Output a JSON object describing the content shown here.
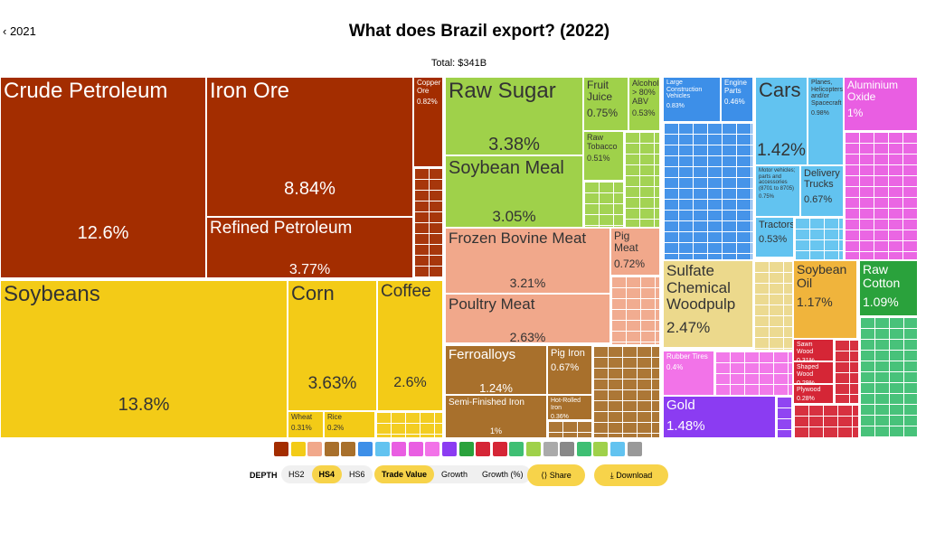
{
  "header": {
    "back": "2021",
    "title": "What does Brazil export? (2022)",
    "total": "Total: $341B"
  },
  "chart_data": {
    "type": "treemap",
    "categories": [
      "Crude Petroleum",
      "Iron Ore",
      "Refined Petroleum",
      "Copper Ore",
      "Soybeans",
      "Corn",
      "Coffee",
      "Wheat",
      "Rice",
      "Raw Sugar",
      "Soybean Meal",
      "Fruit Juice",
      "Alcohol > 80% ABV",
      "Raw Tobacco",
      "Frozen Bovine Meat",
      "Pig Meat",
      "Poultry Meat",
      "Ferroalloys",
      "Semi-Finished Iron",
      "Pig Iron",
      "Hot-Rolled Iron",
      "Large Construction Vehicles",
      "Engine Parts",
      "Cars",
      "Planes, Helicopters, and/or Spacecraft",
      "Aluminium Oxide",
      "Motor vehicles; parts and accessories (8701 to 8705)",
      "Delivery Trucks",
      "Tractors",
      "Sulfate Chemical Woodpulp",
      "Soybean Oil",
      "Raw Cotton",
      "Rubber Tires",
      "Sawn Wood",
      "Shaped Wood",
      "Plywood",
      "Gold"
    ],
    "values": [
      12.6,
      8.84,
      3.77,
      0.82,
      13.8,
      3.63,
      2.6,
      0.31,
      0.2,
      3.38,
      3.05,
      0.75,
      0.53,
      0.51,
      3.21,
      0.72,
      2.63,
      1.24,
      1,
      0.67,
      0.36,
      0.83,
      0.46,
      1.42,
      0.98,
      1,
      0.75,
      0.67,
      0.53,
      2.47,
      1.17,
      1.09,
      0.4,
      0.31,
      0.29,
      0.28,
      1.48
    ],
    "value_labels": [
      "12.6%",
      "8.84%",
      "3.77%",
      "0.82%",
      "13.8%",
      "3.63%",
      "2.6%",
      "0.31%",
      "0.2%",
      "3.38%",
      "3.05%",
      "0.75%",
      "0.53%",
      "0.51%",
      "3.21%",
      "0.72%",
      "2.63%",
      "1.24%",
      "1%",
      "0.67%",
      "0.36%",
      "0.83%",
      "0.46%",
      "1.42%",
      "0.98%",
      "1%",
      "0.75%",
      "0.67%",
      "0.53%",
      "2.47%",
      "1.17%",
      "1.09%",
      "0.4%",
      "0.31%",
      "0.29%",
      "0.28%",
      "1.48%"
    ],
    "colors": [
      "#a32d00",
      "#a32d00",
      "#a32d00",
      "#a32d00",
      "#f3cb17",
      "#f3cb17",
      "#f3cb17",
      "#f3cb17",
      "#f3cb17",
      "#9fd14a",
      "#9fd14a",
      "#9fd14a",
      "#9fd14a",
      "#9fd14a",
      "#f1a88b",
      "#f1a88b",
      "#f1a88b",
      "#a8702c",
      "#a8702c",
      "#a8702c",
      "#a8702c",
      "#3d8fe8",
      "#3d8fe8",
      "#62c3f0",
      "#62c3f0",
      "#e95ee2",
      "#62c3f0",
      "#62c3f0",
      "#62c3f0",
      "#ecd98c",
      "#f0b43c",
      "#2aa23c",
      "#f273e8",
      "#d52636",
      "#d52636",
      "#d52636",
      "#8b3cf2"
    ]
  },
  "controls": {
    "depth": "DEPTH",
    "levels": [
      "HS2",
      "HS4",
      "HS6"
    ],
    "measures": [
      "Trade Value",
      "Growth",
      "Growth (%)"
    ],
    "share": "Share",
    "download": "Download"
  }
}
